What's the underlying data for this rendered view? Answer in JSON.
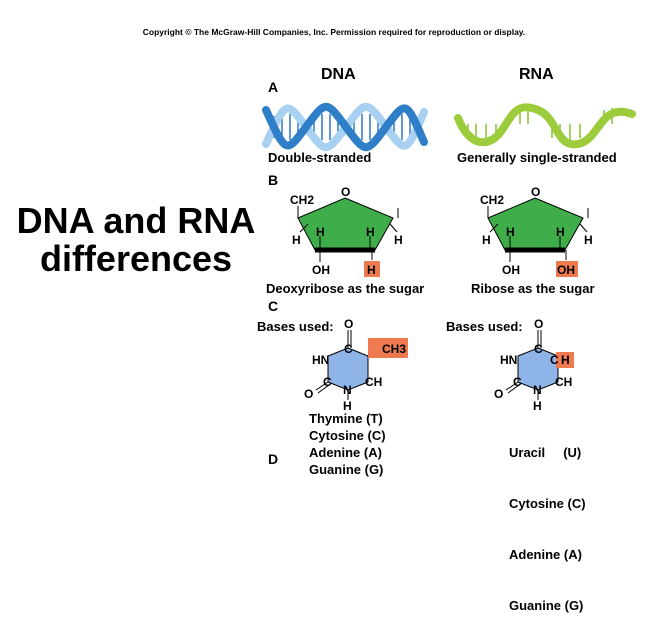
{
  "copyright": "Copyright © The McGraw-Hill Companies, Inc. Permission required for reproduction or display.",
  "title_line1": "DNA and RNA",
  "title_line2": "differences",
  "columns": {
    "dna": "DNA",
    "rna": "RNA"
  },
  "sections": {
    "a": "A",
    "b": "B",
    "c": "C",
    "d": "D"
  },
  "colors": {
    "dna_helix": "#4a90d0",
    "rna_strand": "#9ccc3c",
    "sugar_ring": "#3fae4a",
    "base_ring": "#8fb4e8",
    "highlight": "#f07a50"
  },
  "strands": {
    "dna_caption": "Double-stranded",
    "rna_caption": "Generally single-stranded"
  },
  "sugars": {
    "dna": {
      "caption": "Deoxyribose as the sugar",
      "ch2": "CH2",
      "o": "O",
      "h1": "H",
      "h2": "H",
      "h3": "H",
      "h4": "H",
      "oh": "OH",
      "highlight": "H"
    },
    "rna": {
      "caption": "Ribose as the sugar",
      "ch2": "CH2",
      "o": "O",
      "h1": "H",
      "h2": "H",
      "h3": "H",
      "h4": "H",
      "oh": "OH",
      "highlight": "OH"
    }
  },
  "bases": {
    "dna": {
      "label": "Bases used:",
      "structure": {
        "o_top": "O",
        "c_top": "C",
        "substituent": "CH3",
        "hn": "HN",
        "c_left": "C",
        "ch": "CH",
        "o_left": "O",
        "n": "N",
        "h": "H"
      },
      "list": [
        "Thymine (T)",
        "Cytosine (C)",
        "Adenine  (A)",
        "Guanine  (G)"
      ]
    },
    "rna": {
      "label": "Bases used:",
      "structure": {
        "o_top": "O",
        "c_top": "C",
        "c_right": "C",
        "substituent": "H",
        "hn": "HN",
        "c_left": "C",
        "ch": "CH",
        "o_left": "O",
        "n": "N",
        "h": "H"
      },
      "list": [
        "Uracil     (U)",
        "Cytosine (C)",
        "Adenine  (A)",
        "Guanine  (G)"
      ]
    }
  }
}
